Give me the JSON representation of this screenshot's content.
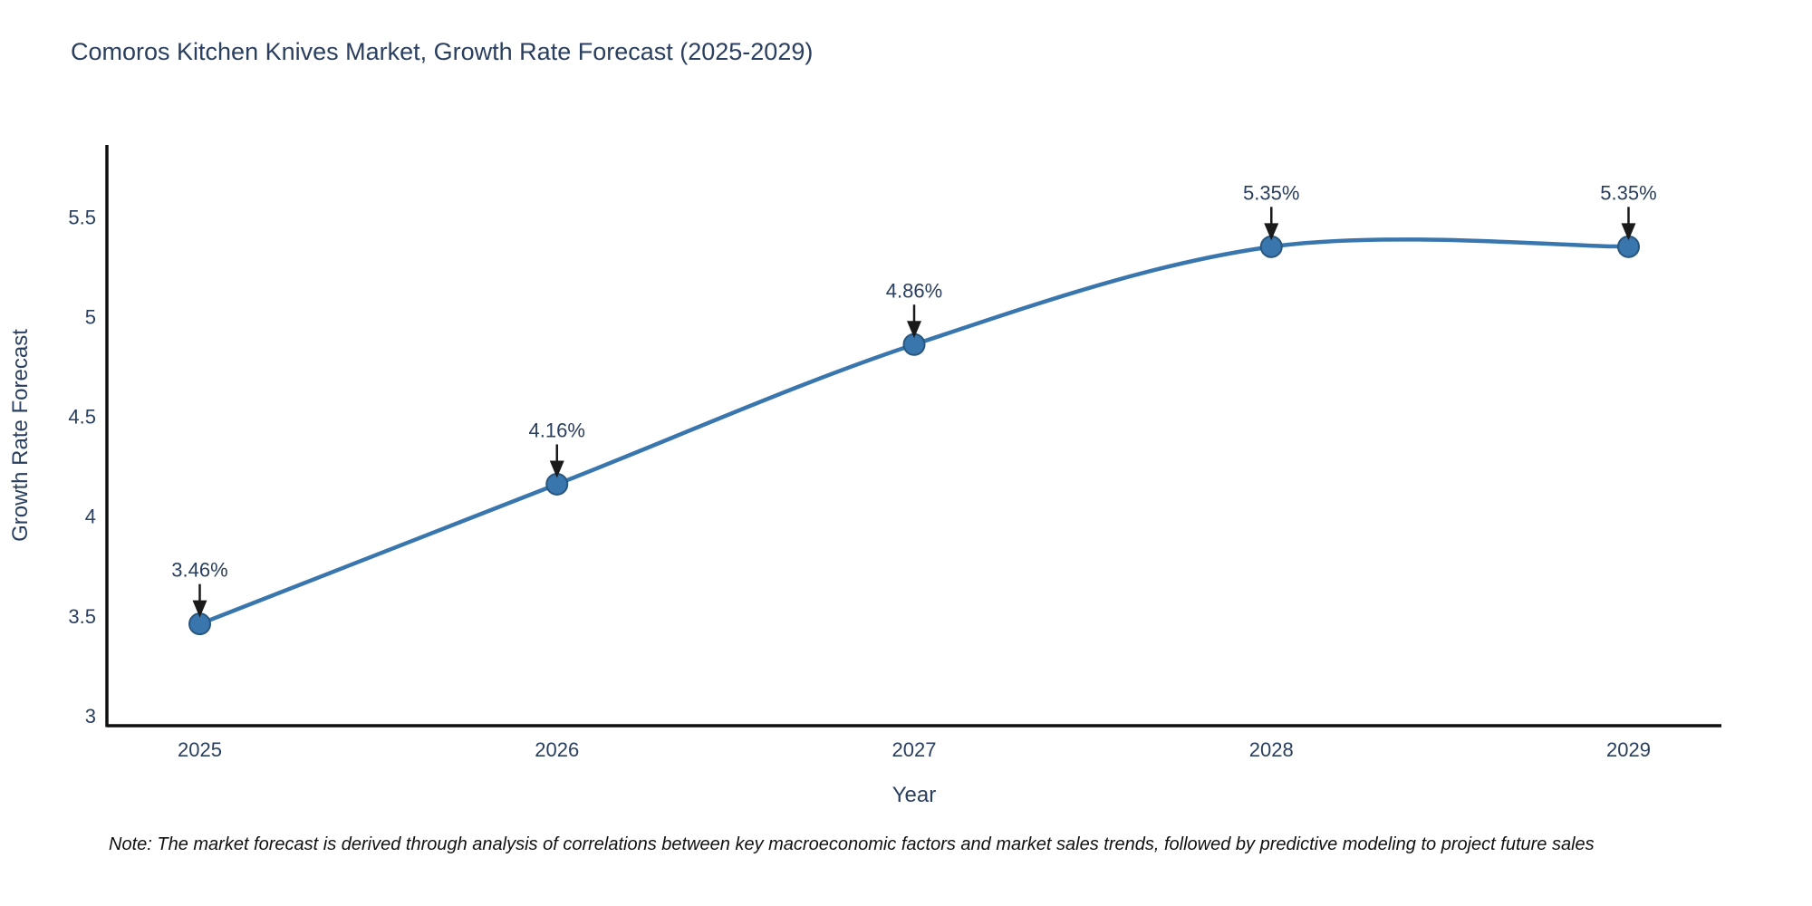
{
  "note": "Note: The market forecast is derived through analysis of correlations between key macroeconomic factors and market sales trends, followed by predictive modeling to project future sales",
  "chart_data": {
    "type": "line",
    "title": "Comoros Kitchen Knives Market, Growth Rate Forecast (2025-2029)",
    "xlabel": "Year",
    "ylabel": "Growth Rate Forecast",
    "x": [
      2025,
      2026,
      2027,
      2028,
      2029
    ],
    "series": [
      {
        "name": "Growth Rate Forecast",
        "values": [
          3.46,
          4.16,
          4.86,
          5.35,
          5.35
        ]
      }
    ],
    "annotations": [
      "3.46%",
      "4.16%",
      "4.86%",
      "5.35%",
      "5.35%"
    ],
    "yticks": [
      "3",
      "3.5",
      "4",
      "4.5",
      "5",
      "5.5"
    ],
    "ytick_values": [
      3,
      3.5,
      4,
      4.5,
      5,
      5.5
    ],
    "ylim": [
      2.95,
      5.86
    ],
    "xlim": [
      2024.74,
      2029.26
    ],
    "line_shape": "spline",
    "grid": false,
    "legend_position": "none",
    "colors": {
      "line": "#3a76ae",
      "marker_fill": "#3a76ae",
      "marker_edge": "#29567d",
      "axis_line": "#0f0f0f",
      "text": "#2a3f5f",
      "annotation_arrow": "#1a1a1a",
      "background": "#ffffff"
    }
  }
}
